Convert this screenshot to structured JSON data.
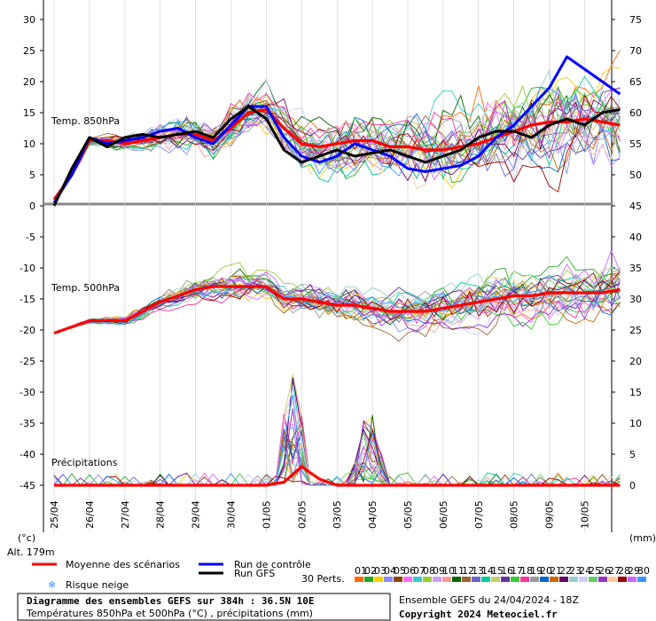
{
  "chart_data": [
    {
      "type": "line",
      "title": "Diagramme des ensembles GEFS sur 384h : 36.5N 10E",
      "subtitle": "Températures 850hPa et 500hPa (°C) , précipitations (mm)",
      "panels": [
        {
          "label": "Temp. 850hPa"
        },
        {
          "label": "Temp. 500hPa"
        },
        {
          "label": "Précipitations"
        }
      ],
      "left_axis": {
        "unit": "(°c)",
        "ticks": [
          "30",
          "25",
          "20",
          "15",
          "10",
          "5",
          "0",
          "-5",
          "-10",
          "-15",
          "-20",
          "-25",
          "-30",
          "-35",
          "-40",
          "-45"
        ],
        "ylim": [
          -45,
          30
        ]
      },
      "right_axis": {
        "unit": "(mm)",
        "ticks": [
          "75",
          "70",
          "65",
          "60",
          "55",
          "50",
          "45",
          "40",
          "35",
          "30",
          "25",
          "20",
          "15",
          "10",
          "5",
          "0"
        ],
        "ylim": [
          0,
          75
        ]
      },
      "x_ticks": [
        "25/04",
        "26/04",
        "27/04",
        "28/04",
        "29/04",
        "30/04",
        "01/05",
        "02/05",
        "03/05",
        "04/05",
        "05/05",
        "06/05",
        "07/05",
        "08/05",
        "09/05",
        "10/05"
      ],
      "altitude": "Alt. 179m",
      "series": [
        {
          "name": "Moyenne des scénarios",
          "panel": "850hPa",
          "color": "#ff0000",
          "x_days": [
            0,
            0.5,
            1,
            1.5,
            2,
            2.5,
            3,
            3.5,
            4,
            4.5,
            5,
            5.5,
            6,
            6.5,
            7,
            7.5,
            8,
            8.5,
            9,
            9.5,
            10,
            10.5,
            11,
            11.5,
            12,
            12.5,
            13,
            13.5,
            14,
            14.5,
            15,
            15.5,
            16
          ],
          "values": [
            1,
            5,
            10.5,
            10.5,
            10,
            10.5,
            11,
            11.5,
            11.5,
            10.5,
            12.5,
            15,
            15.5,
            12.5,
            10,
            9.5,
            10,
            10.5,
            10.5,
            9.5,
            9.5,
            9,
            9,
            9.5,
            10,
            11,
            12,
            13,
            13.5,
            13.5,
            14,
            13.5,
            13
          ]
        },
        {
          "name": "Moyenne des scénarios",
          "panel": "500hPa",
          "color": "#ff0000",
          "x_days": [
            0,
            0.5,
            1,
            1.5,
            2,
            2.5,
            3,
            3.5,
            4,
            4.5,
            5,
            5.5,
            6,
            6.5,
            7,
            7.5,
            8,
            8.5,
            9,
            9.5,
            10,
            10.5,
            11,
            11.5,
            12,
            12.5,
            13,
            13.5,
            14,
            14.5,
            15,
            15.5,
            16
          ],
          "values": [
            -20.5,
            -19.5,
            -18.5,
            -18.5,
            -18.5,
            -17,
            -15.5,
            -14.5,
            -13.5,
            -13,
            -13,
            -13,
            -13,
            -15,
            -15,
            -15.5,
            -16,
            -16,
            -16.5,
            -17,
            -17,
            -17,
            -16.5,
            -16,
            -15.5,
            -15,
            -14.5,
            -14.5,
            -14,
            -14,
            -14,
            -14,
            -13.5
          ]
        },
        {
          "name": "Moyenne des scénarios",
          "panel": "précipitations",
          "color": "#ff0000",
          "x_days": [
            0,
            1,
            2,
            3,
            4,
            5,
            5.5,
            6,
            6.5,
            6.8,
            7,
            7.5,
            8,
            8.5,
            9,
            9.5,
            10,
            11,
            12,
            13,
            14,
            15,
            16
          ],
          "values": [
            0,
            0,
            0,
            0,
            0,
            0,
            0,
            0,
            0.5,
            2,
            3,
            1,
            0,
            0,
            0,
            0,
            0,
            0,
            0,
            0,
            0,
            0,
            0
          ]
        },
        {
          "name": "Run de contrôle",
          "panel": "850hPa",
          "color": "#0000ff",
          "x_days": [
            0,
            0.5,
            1,
            1.5,
            2,
            2.5,
            3,
            3.5,
            4,
            4.5,
            5,
            5.5,
            6,
            6.5,
            7,
            7.5,
            8,
            8.5,
            9,
            9.5,
            10,
            10.5,
            11,
            11.5,
            12,
            12.5,
            13,
            13.5,
            14,
            14.5,
            15,
            15.5,
            16
          ],
          "values": [
            0.5,
            5,
            11,
            10,
            10.5,
            11,
            12,
            12.5,
            11,
            10,
            13,
            16,
            16,
            11,
            8,
            7,
            8,
            10,
            9,
            8,
            6,
            5.5,
            6,
            6.5,
            8,
            11,
            13,
            16,
            19,
            24,
            22,
            20,
            18
          ]
        },
        {
          "name": "Run GFS",
          "panel": "850hPa",
          "color": "#000000",
          "x_days": [
            0,
            0.5,
            1,
            1.5,
            2,
            2.5,
            3,
            3.5,
            4,
            4.5,
            5,
            5.5,
            6,
            6.5,
            7,
            7.5,
            8,
            8.5,
            9,
            9.5,
            10,
            10.5,
            11,
            11.5,
            12,
            12.5,
            13,
            13.5,
            14,
            14.5,
            15,
            15.5,
            16
          ],
          "values": [
            0,
            6,
            11,
            9.5,
            11,
            11.5,
            11,
            11.5,
            12,
            11,
            14,
            16,
            14,
            9,
            7,
            8,
            9,
            8,
            8.5,
            9,
            8,
            7,
            8,
            9,
            11,
            12,
            12,
            11,
            13,
            14,
            13,
            15,
            15.5
          ]
        }
      ],
      "members_count": 30,
      "legend": {
        "mean": "Moyenne des scénarios",
        "control": "Run de contrôle",
        "gfs": "Run GFS",
        "snow": "Risque neige",
        "perts_label": "30 Perts.",
        "perts": [
          "01",
          "02",
          "03",
          "04",
          "05",
          "06",
          "07",
          "08",
          "09",
          "10",
          "11",
          "12",
          "13",
          "14",
          "15",
          "16",
          "17",
          "18",
          "19",
          "20",
          "21",
          "22",
          "23",
          "24",
          "25",
          "26",
          "27",
          "28",
          "29",
          "30"
        ],
        "pert_colors": [
          "#ff6600",
          "#22aa22",
          "#ffcc00",
          "#8888ff",
          "#884400",
          "#ff66ff",
          "#33cccc",
          "#99cc33",
          "#cc99ff",
          "#ff9999",
          "#006600",
          "#996633",
          "#6666cc",
          "#00cc99",
          "#cccc66",
          "#663399",
          "#33cc33",
          "#ff3399",
          "#999999",
          "#0066cc",
          "#cc6600",
          "#660066",
          "#99cccc",
          "#ccccff",
          "#66cc66",
          "#9933cc",
          "#ffcc99",
          "#990000",
          "#cc66ff",
          "#3399ff"
        ]
      },
      "footer": {
        "run_info": "Ensemble GEFS du 24/04/2024 - 18Z",
        "copyright": "Copyright 2024 Meteociel.fr"
      }
    }
  ]
}
